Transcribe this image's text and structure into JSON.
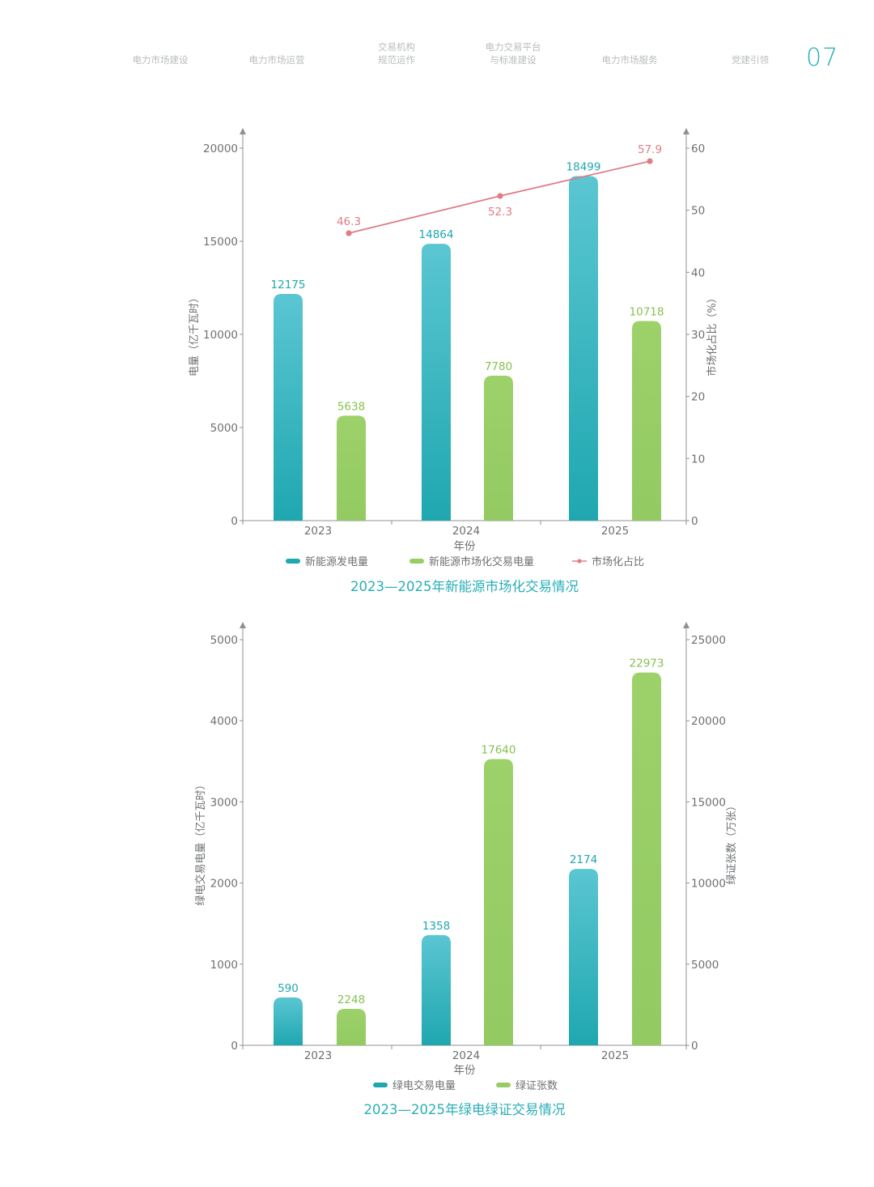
{
  "nav": {
    "items": [
      {
        "lines": [
          "电力市场建设"
        ]
      },
      {
        "lines": [
          "电力市场运营"
        ]
      },
      {
        "lines": [
          "交易机构",
          "规范运作"
        ]
      },
      {
        "lines": [
          "电力交易平台",
          "与标准建设"
        ]
      },
      {
        "lines": [
          "电力市场服务"
        ]
      },
      {
        "lines": [
          "党建引领"
        ]
      }
    ],
    "page_number": "07"
  },
  "colors": {
    "teal": "#1fa7b0",
    "green": "#98cd66",
    "line": "#e07c86",
    "title": "#2aaeb8",
    "axis": "#8e9194",
    "tick": "#6d7073"
  },
  "chart_data": [
    {
      "type": "bar",
      "title": "2023—2025年新能源市场化交易情况",
      "xlabel": "年份",
      "ylabel": "电量（亿千瓦时）",
      "y2label": "市场化占比（%）",
      "categories": [
        "2023",
        "2024",
        "2025"
      ],
      "ylim": [
        0,
        20000
      ],
      "yticks": [
        "0",
        "5000",
        "10000",
        "15000",
        "20000"
      ],
      "y2lim": [
        0,
        60
      ],
      "y2ticks": [
        "0",
        "10",
        "20",
        "30",
        "40",
        "50",
        "60"
      ],
      "series": [
        {
          "name": "新能源发电量",
          "kind": "bar",
          "axis": "left",
          "color": "#1fa7b0",
          "values": [
            12175,
            14864,
            18499
          ],
          "labels": [
            "12175",
            "14864",
            "18499"
          ]
        },
        {
          "name": "新能源市场化交易电量",
          "kind": "bar",
          "axis": "left",
          "color": "#98cd66",
          "values": [
            5638,
            7780,
            10718
          ],
          "labels": [
            "5638",
            "7780",
            "10718"
          ]
        },
        {
          "name": "市场化占比",
          "kind": "line",
          "axis": "right",
          "color": "#e07c86",
          "values": [
            46.3,
            52.3,
            57.9
          ],
          "labels": [
            "46.3",
            "52.3",
            "57.9"
          ]
        }
      ],
      "legend": "bottom"
    },
    {
      "type": "bar",
      "title": "2023—2025年绿电绿证交易情况",
      "xlabel": "年份",
      "ylabel": "绿电交易电量（亿千瓦时）",
      "y2label": "绿证张数（万张）",
      "categories": [
        "2023",
        "2024",
        "2025"
      ],
      "ylim": [
        0,
        5000
      ],
      "yticks": [
        "0",
        "1000",
        "2000",
        "3000",
        "4000",
        "5000"
      ],
      "y2lim": [
        0,
        25000
      ],
      "y2ticks": [
        "0",
        "5000",
        "10000",
        "15000",
        "20000",
        "25000"
      ],
      "series": [
        {
          "name": "绿电交易电量",
          "kind": "bar",
          "axis": "left",
          "color": "#1fa7b0",
          "values": [
            590,
            1358,
            2174
          ],
          "labels": [
            "590",
            "1358",
            "2174"
          ]
        },
        {
          "name": "绿证张数",
          "kind": "bar",
          "axis": "right",
          "color": "#98cd66",
          "values": [
            2248,
            17640,
            22973
          ],
          "labels": [
            "2248",
            "17640",
            "22973"
          ]
        }
      ],
      "legend": "bottom"
    }
  ]
}
